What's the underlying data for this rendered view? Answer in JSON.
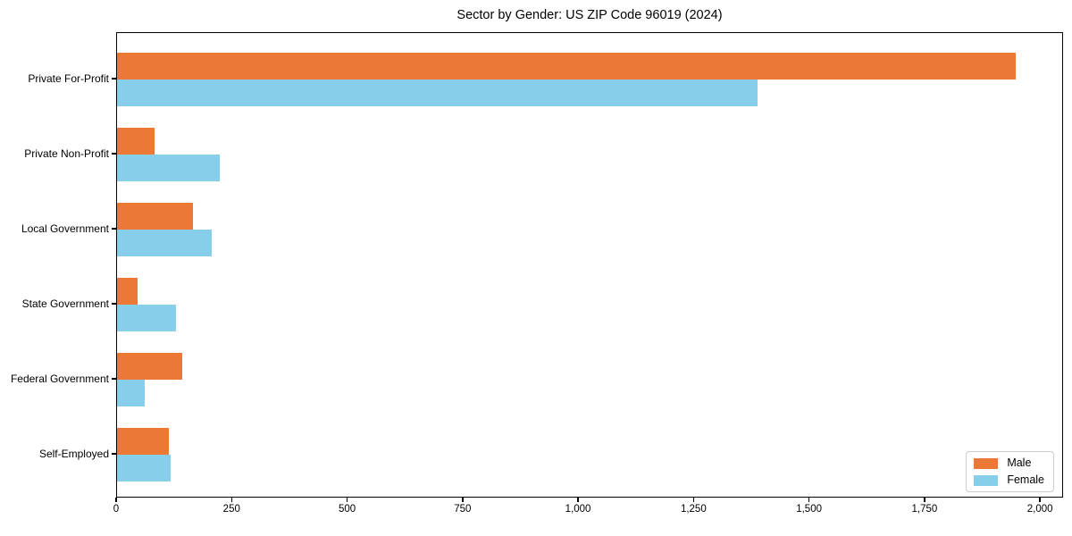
{
  "chart_data": {
    "type": "bar",
    "orientation": "horizontal",
    "title": "Sector by Gender: US ZIP Code 96019 (2024)",
    "xlabel": "",
    "ylabel": "",
    "categories": [
      "Private For-Profit",
      "Private Non-Profit",
      "Local Government",
      "State Government",
      "Federal Government",
      "Self-Employed"
    ],
    "series": [
      {
        "name": "Male",
        "color": "#EC7838",
        "values": [
          1946,
          81,
          164,
          45,
          141,
          112
        ]
      },
      {
        "name": "Female",
        "color": "#87CEEB",
        "values": [
          1387,
          222,
          205,
          128,
          60,
          116
        ]
      }
    ],
    "xlim": [
      0,
      2050
    ],
    "x_ticks": [
      0,
      250,
      500,
      750,
      1000,
      1250,
      1500,
      1750,
      2000
    ],
    "x_tick_labels": [
      "0",
      "250",
      "500",
      "750",
      "1,000",
      "1,250",
      "1,500",
      "1,750",
      "2,000"
    ],
    "grid": false,
    "legend": {
      "position": "lower right",
      "items": [
        {
          "label": "Male",
          "color": "#EC7838"
        },
        {
          "label": "Female",
          "color": "#87CEEB"
        }
      ]
    },
    "colors": {
      "male": "#EC7838",
      "female": "#87CEEB",
      "spine": "#000000",
      "background": "#FFFFFF",
      "legend_border": "#CCCCCC"
    }
  }
}
